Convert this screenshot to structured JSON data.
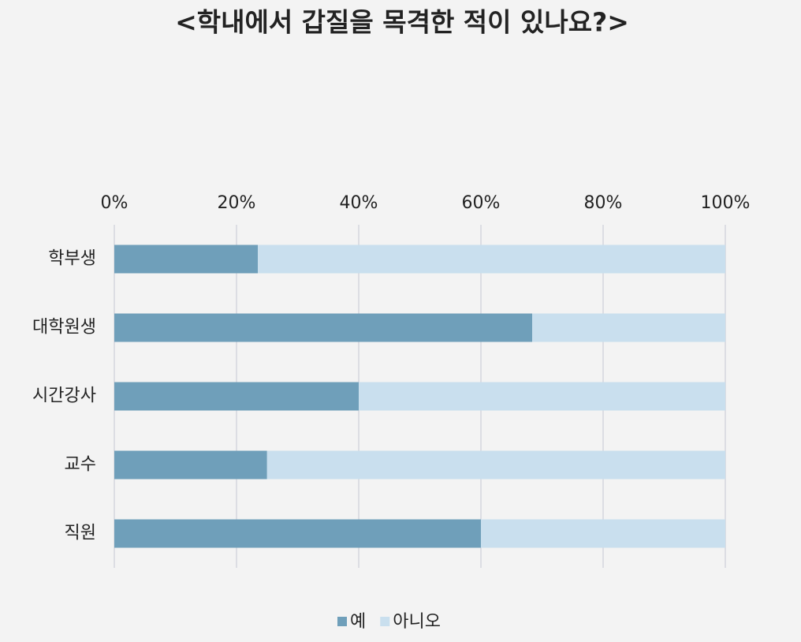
{
  "chart_data": {
    "type": "bar",
    "orientation": "horizontal",
    "stacked": true,
    "title": "<학내에서 갑질을 목격한 적이 있나요?>",
    "categories": [
      "학부생",
      "대학원생",
      "시간강사",
      "교수",
      "직원"
    ],
    "series": [
      {
        "name": "예",
        "color": "#6f9fba",
        "values": [
          23.5,
          68.4,
          40,
          25,
          60
        ]
      },
      {
        "name": "아니오",
        "color": "#c9dfee",
        "values": [
          76.5,
          31.6,
          60,
          75,
          40
        ]
      }
    ],
    "xlim": [
      0,
      100
    ],
    "xticks": [
      {
        "value": 0,
        "label": "0%"
      },
      {
        "value": 20,
        "label": "20%"
      },
      {
        "value": 40,
        "label": "40%"
      },
      {
        "value": 60,
        "label": "60%"
      },
      {
        "value": 80,
        "label": "80%"
      },
      {
        "value": 100,
        "label": "100%"
      }
    ],
    "grid": true,
    "legend": "bottom"
  }
}
